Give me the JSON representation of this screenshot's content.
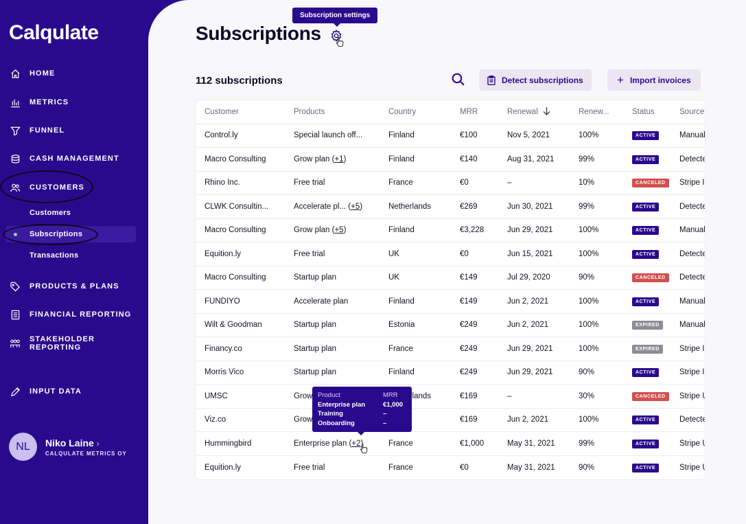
{
  "app": {
    "name": "Calqulate"
  },
  "nav": [
    {
      "label": "HOME",
      "icon": "home-icon"
    },
    {
      "label": "METRICS",
      "icon": "bar-chart-icon"
    },
    {
      "label": "FUNNEL",
      "icon": "funnel-icon"
    },
    {
      "label": "CASH MANAGEMENT",
      "icon": "coins-icon"
    },
    {
      "label": "CUSTOMERS",
      "icon": "users-icon"
    },
    {
      "label": "PRODUCTS & PLANS",
      "icon": "tag-icon"
    },
    {
      "label": "FINANCIAL REPORTING",
      "icon": "report-icon"
    },
    {
      "label": "STAKEHOLDER REPORTING",
      "icon": "stakeholders-icon"
    },
    {
      "label": "INPUT DATA",
      "icon": "pencil-icon"
    }
  ],
  "sub_nav": [
    {
      "label": "Customers"
    },
    {
      "label": "Subscriptions",
      "active": true
    },
    {
      "label": "Transactions"
    }
  ],
  "user": {
    "initials": "NL",
    "name": "Niko Laine",
    "org": "CALQULATE METRICS OY"
  },
  "page": {
    "title": "Subscriptions",
    "settings_tooltip": "Subscription settings",
    "count_label": "112 subscriptions",
    "detect_button": "Detect subscriptions",
    "import_button": "Import invoices"
  },
  "table": {
    "columns": [
      "Customer",
      "Products",
      "Country",
      "MRR",
      "Renewal",
      "Renew...",
      "Status",
      "Source"
    ],
    "rows": [
      {
        "customer": "Control.ly",
        "product": "Special launch off...",
        "extra": "",
        "country": "Finland",
        "mrr": "€100",
        "renewal": "Nov 5, 2021",
        "renew_rate": "100%",
        "status": "ACTIVE",
        "source": "Manual"
      },
      {
        "customer": "Macro Consulting",
        "product": "Grow plan",
        "extra": "+1",
        "country": "Finland",
        "mrr": "€140",
        "renewal": "Aug 31, 2021",
        "renew_rate": "99%",
        "status": "ACTIVE",
        "source": "Detected"
      },
      {
        "customer": "Rhino Inc.",
        "product": "Free trial",
        "extra": "",
        "country": "France",
        "mrr": "€0",
        "renewal": "–",
        "renew_rate": "10%",
        "status": "CANCELED",
        "source": "Stripe I"
      },
      {
        "customer": "CLWK Consultin...",
        "product": "Accelerate pl...",
        "extra": "+5",
        "country": "Netherlands",
        "mrr": "€269",
        "renewal": "Jun 30, 2021",
        "renew_rate": "99%",
        "status": "ACTIVE",
        "source": "Detected"
      },
      {
        "customer": "Macro Consulting",
        "product": "Grow plan",
        "extra": "+5",
        "country": "Finland",
        "mrr": "€3,228",
        "renewal": "Jun 29, 2021",
        "renew_rate": "100%",
        "status": "ACTIVE",
        "source": "Manual"
      },
      {
        "customer": "Equition.ly",
        "product": "Free trial",
        "extra": "",
        "country": "UK",
        "mrr": "€0",
        "renewal": "Jun 15, 2021",
        "renew_rate": "100%",
        "status": "ACTIVE",
        "source": "Detected"
      },
      {
        "customer": "Macro Consulting",
        "product": "Startup plan",
        "extra": "",
        "country": "UK",
        "mrr": "€149",
        "renewal": "Jul 29, 2020",
        "renew_rate": "90%",
        "status": "CANCELED",
        "source": "Detected"
      },
      {
        "customer": "FUNDIYO",
        "product": "Accelerate plan",
        "extra": "",
        "country": "Finland",
        "mrr": "€149",
        "renewal": "Jun 2, 2021",
        "renew_rate": "100%",
        "status": "ACTIVE",
        "source": "Manual"
      },
      {
        "customer": "Wilt & Goodman",
        "product": "Startup plan",
        "extra": "",
        "country": "Estonia",
        "mrr": "€249",
        "renewal": "Jun 2, 2021",
        "renew_rate": "100%",
        "status": "EXPIRED",
        "source": "Manual"
      },
      {
        "customer": "Financy.co",
        "product": "Startup plan",
        "extra": "",
        "country": "France",
        "mrr": "€249",
        "renewal": "Jun 29, 2021",
        "renew_rate": "100%",
        "status": "EXPIRED",
        "source": "Stripe I"
      },
      {
        "customer": "Morris Vico",
        "product": "Startup plan",
        "extra": "",
        "country": "Finland",
        "mrr": "€249",
        "renewal": "Jun 29, 2021",
        "renew_rate": "90%",
        "status": "ACTIVE",
        "source": "Stripe I"
      },
      {
        "customer": "UMSC",
        "product": "Grow",
        "extra": "",
        "country": "Netherlands",
        "mrr": "€169",
        "renewal": "–",
        "renew_rate": "30%",
        "status": "CANCELED",
        "source": "Stripe U"
      },
      {
        "customer": "Viz.co",
        "product": "Grow",
        "extra": "",
        "country": "",
        "mrr": "€169",
        "renewal": "Jun 2, 2021",
        "renew_rate": "100%",
        "status": "ACTIVE",
        "source": "Detected"
      },
      {
        "customer": "Hummingbird",
        "product": "Enterprise plan",
        "extra": "+2",
        "country": "France",
        "mrr": "€1,000",
        "renewal": "May 31, 2021",
        "renew_rate": "99%",
        "status": "ACTIVE",
        "source": "Stripe U"
      },
      {
        "customer": "Equition.ly",
        "product": "Free trial",
        "extra": "",
        "country": "France",
        "mrr": "€0",
        "renewal": "May 31, 2021",
        "renew_rate": "90%",
        "status": "ACTIVE",
        "source": "Stripe U"
      }
    ]
  },
  "product_tooltip": {
    "header": {
      "product": "Product",
      "mrr": "MRR"
    },
    "rows": [
      {
        "product": "Enterprise plan",
        "mrr": "€1,000"
      },
      {
        "product": "Training",
        "mrr": "–"
      },
      {
        "product": "Onboarding",
        "mrr": "–"
      }
    ]
  },
  "status_colors": {
    "ACTIVE": "#2a0a8c",
    "CANCELED": "#d2504f",
    "EXPIRED": "#8e8c96"
  }
}
